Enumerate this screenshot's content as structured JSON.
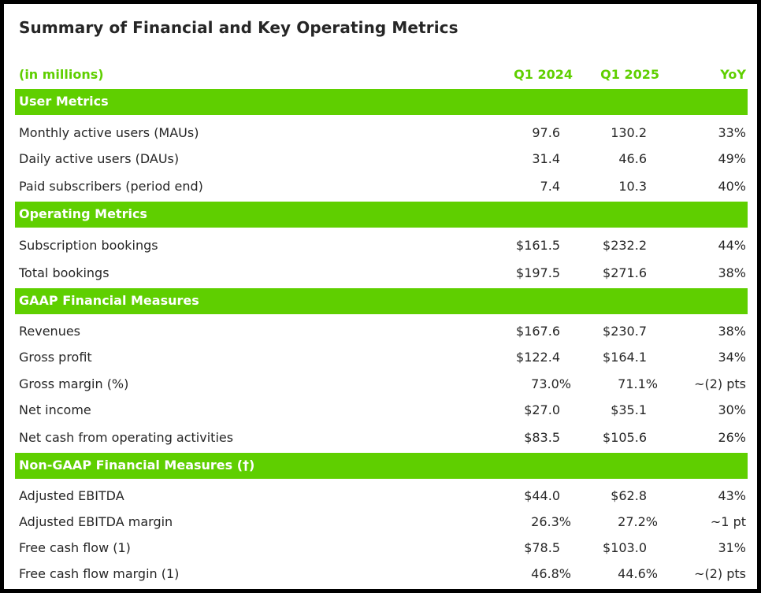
{
  "title": "Summary of Financial and Key Operating Metrics",
  "header": {
    "unit_label": "(in millions)",
    "col1": "Q1 2024",
    "col2": "Q1 2025",
    "col3": "YoY"
  },
  "sections": [
    {
      "name": "User Metrics",
      "rows": [
        {
          "label": "Monthly active users (MAUs)",
          "q1_2024": "97.6",
          "q1_2025": "130.2",
          "yoy": "33%"
        },
        {
          "label": "Daily active users (DAUs)",
          "q1_2024": "31.4",
          "q1_2025": "46.6",
          "yoy": "49%"
        },
        {
          "label": "Paid subscribers (period end)",
          "q1_2024": "7.4",
          "q1_2025": "10.3",
          "yoy": "40%"
        }
      ]
    },
    {
      "name": "Operating Metrics",
      "rows": [
        {
          "label": "Subscription bookings",
          "q1_2024": "$161.5",
          "q1_2025": "$232.2",
          "yoy": "44%"
        },
        {
          "label": "Total bookings",
          "q1_2024": "$197.5",
          "q1_2025": "$271.6",
          "yoy": "38%"
        }
      ]
    },
    {
      "name": "GAAP Financial Measures",
      "rows": [
        {
          "label": "Revenues",
          "q1_2024": "$167.6",
          "q1_2025": "$230.7",
          "yoy": "38%"
        },
        {
          "label": "Gross profit",
          "q1_2024": "$122.4",
          "q1_2025": "$164.1",
          "yoy": "34%"
        },
        {
          "label": "Gross margin (%)",
          "q1_2024": "73.0%",
          "q1_2025": "71.1%",
          "yoy": "~(2) pts"
        },
        {
          "label": "Net income",
          "q1_2024": "$27.0",
          "q1_2025": "$35.1",
          "yoy": "30%"
        },
        {
          "label": "Net cash from operating activities",
          "q1_2024": "$83.5",
          "q1_2025": "$105.6",
          "yoy": "26%"
        }
      ]
    },
    {
      "name": "Non-GAAP Financial Measures (†)",
      "rows": [
        {
          "label": "Adjusted EBITDA",
          "q1_2024": "$44.0",
          "q1_2025": "$62.8",
          "yoy": "43%"
        },
        {
          "label": "Adjusted EBITDA margin",
          "q1_2024": "26.3%",
          "q1_2025": "27.2%",
          "yoy": "~1 pt"
        },
        {
          "label": "Free cash flow (1)",
          "q1_2024": "$78.5",
          "q1_2025": "$103.0",
          "yoy": "31%"
        },
        {
          "label": "Free cash flow margin (1)",
          "q1_2024": "46.8%",
          "q1_2025": "44.6%",
          "yoy": "~(2) pts"
        }
      ]
    }
  ],
  "colors": {
    "accent": "#5fcf00",
    "text": "#262626",
    "frame": "#000000"
  }
}
